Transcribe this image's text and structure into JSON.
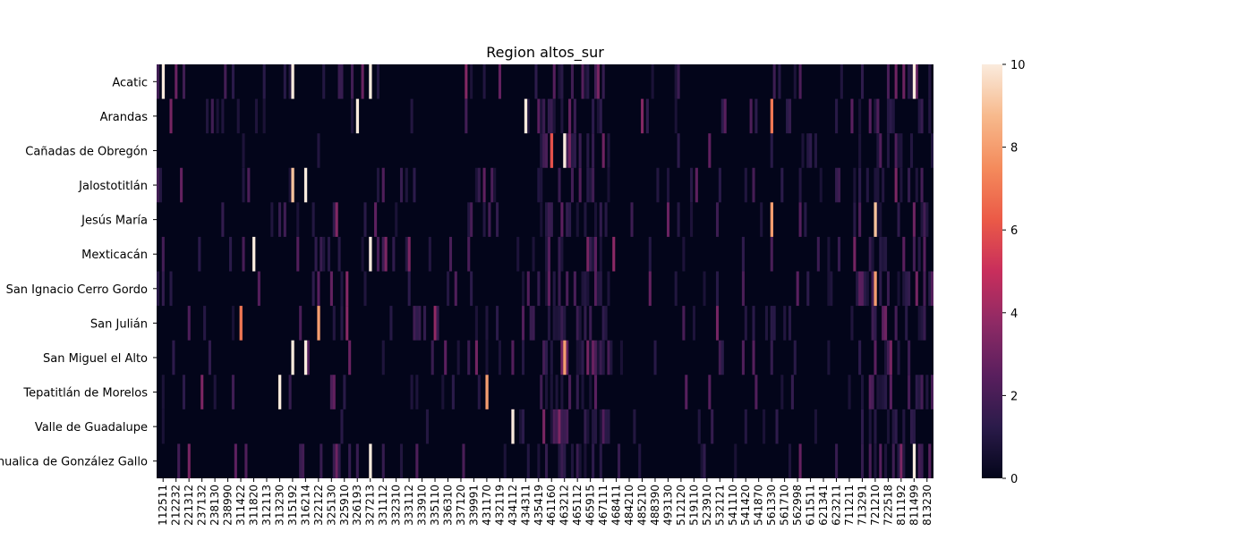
{
  "chart_data": {
    "type": "heatmap",
    "title": "Region altos_sur",
    "xlabel": "",
    "ylabel": "",
    "rows": [
      "Acatic",
      "Arandas",
      "Cañadas de Obregón",
      "Jalostotitlán",
      "Jesús María",
      "Mexticacán",
      "San Ignacio Cerro Gordo",
      "San Julián",
      "San Miguel el Alto",
      "Tepatitlán de Morelos",
      "Valle de Guadalupe",
      "Yahualica de González Gallo"
    ],
    "x_tick_labels": [
      "112511",
      "212232",
      "221312",
      "237132",
      "238130",
      "238990",
      "311422",
      "311820",
      "312113",
      "313230",
      "315192",
      "316214",
      "322122",
      "325130",
      "325910",
      "326193",
      "327213",
      "331112",
      "332310",
      "333112",
      "333910",
      "335110",
      "336310",
      "337120",
      "339991",
      "431170",
      "432119",
      "434112",
      "434311",
      "435419",
      "461160",
      "463212",
      "465112",
      "465915",
      "467111",
      "468411",
      "484210",
      "485210",
      "488390",
      "493130",
      "512120",
      "519110",
      "523910",
      "532121",
      "541110",
      "541420",
      "541870",
      "561330",
      "561710",
      "562998",
      "611511",
      "621341",
      "623211",
      "711211",
      "713291",
      "721210",
      "722518",
      "811192",
      "811499",
      "813230"
    ],
    "value_range": [
      0,
      10
    ],
    "colorbar_ticks": [
      0,
      2,
      4,
      6,
      8,
      10
    ],
    "colormap": [
      "#03051a",
      "#2b1b4a",
      "#5a1f5e",
      "#8e2a65",
      "#c82e5c",
      "#eb5a47",
      "#f48b5c",
      "#f7b98c",
      "#faebdd"
    ],
    "notable_cells": [
      {
        "row": "Acatic",
        "x": 112511,
        "value": 10
      },
      {
        "row": "Acatic",
        "x": 315192,
        "value": 10
      },
      {
        "row": "Acatic",
        "x": 327213,
        "value": 10
      },
      {
        "row": "Acatic",
        "x": 811499,
        "value": 10
      },
      {
        "row": "Arandas",
        "x": 326193,
        "value": 10
      },
      {
        "row": "Arandas",
        "x": 434311,
        "value": 10
      },
      {
        "row": "Arandas",
        "x": 561330,
        "value": 7
      },
      {
        "row": "Cañadas de Obregón",
        "x": 461160,
        "value": 6
      },
      {
        "row": "Cañadas de Obregón",
        "x": 463212,
        "value": 10
      },
      {
        "row": "Jalostotitlán",
        "x": 315192,
        "value": 9
      },
      {
        "row": "Jalostotitlán",
        "x": 316214,
        "value": 10
      },
      {
        "row": "Jesús María",
        "x": 561330,
        "value": 8
      },
      {
        "row": "Jesús María",
        "x": 721210,
        "value": 9
      },
      {
        "row": "Mexticacán",
        "x": 311820,
        "value": 10
      },
      {
        "row": "Mexticacán",
        "x": 327213,
        "value": 10
      },
      {
        "row": "San Ignacio Cerro Gordo",
        "x": 721210,
        "value": 8
      },
      {
        "row": "San Julián",
        "x": 311422,
        "value": 7
      },
      {
        "row": "San Julián",
        "x": 322122,
        "value": 8
      },
      {
        "row": "San Miguel el Alto",
        "x": 315192,
        "value": 10
      },
      {
        "row": "San Miguel el Alto",
        "x": 316214,
        "value": 10
      },
      {
        "row": "San Miguel el Alto",
        "x": 463212,
        "value": 8
      },
      {
        "row": "Tepatitlán de Morelos",
        "x": 313230,
        "value": 10
      },
      {
        "row": "Tepatitlán de Morelos",
        "x": 431170,
        "value": 8
      },
      {
        "row": "Valle de Guadalupe",
        "x": 434112,
        "value": 10
      },
      {
        "row": "Yahualica de González Gallo",
        "x": 327213,
        "value": 10
      },
      {
        "row": "Yahualica de González Gallo",
        "x": 811499,
        "value": 10
      }
    ]
  }
}
